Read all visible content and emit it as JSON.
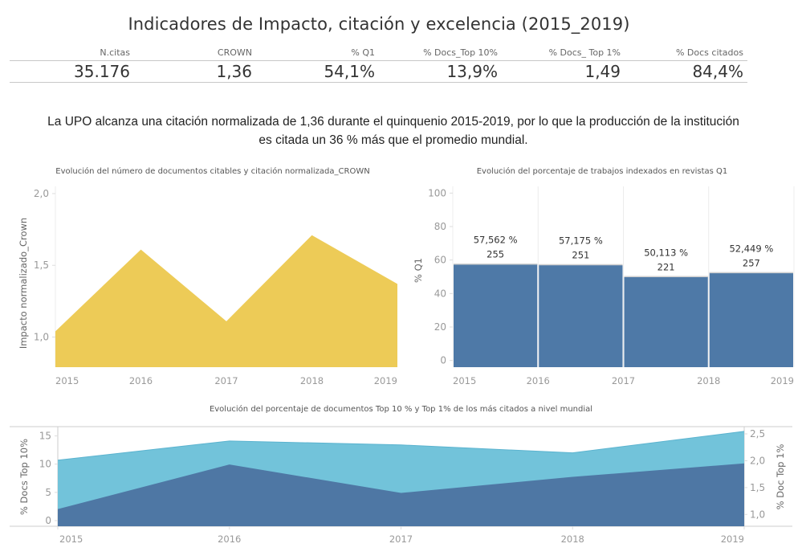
{
  "header": {
    "title": "Indicadores de Impacto, citación y excelencia (2015_2019)"
  },
  "kpis": [
    {
      "label": "N.citas",
      "value": "35.176"
    },
    {
      "label": "CROWN",
      "value": "1,36"
    },
    {
      "label": "% Q1",
      "value": "54,1%"
    },
    {
      "label": "% Docs_Top 10%",
      "value": "13,9%"
    },
    {
      "label": "% Docs_ Top 1%",
      "value": "1,49"
    },
    {
      "label": "% Docs citados",
      "value": "84,4%"
    }
  ],
  "summary": {
    "line1": "La UPO alcanza una citación normalizada de 1,36 durante el quinquenio 2015-2019,  por lo que la producción de la institución",
    "line2": "es citada un 36 % más que el promedio mundial."
  },
  "colors": {
    "crown": "#EDCB57",
    "q1": "#4E79A7",
    "top10": "#72C3DA",
    "top1": "#4E77A4",
    "axis": "#999999",
    "grid": "#e6e6e6"
  },
  "chart_data": [
    {
      "type": "area",
      "title": "Evolución del número de documentos citables y citación normalizada_CROWN",
      "xlabel": "",
      "ylabel": "Impacto normalizado_Crown",
      "categories": [
        "2015",
        "2016",
        "2017",
        "2018",
        "2019"
      ],
      "values": [
        1.04,
        1.61,
        1.11,
        1.71,
        1.37
      ],
      "ylim": [
        0.79,
        2.05
      ],
      "yticks": [
        1.0,
        1.5,
        2.0
      ],
      "ytick_labels": [
        "1,0",
        "1,5",
        "2,0"
      ],
      "grid": false
    },
    {
      "type": "bar",
      "title": "Evolución del porcentaje de trabajos indexados en revistas Q1",
      "xlabel": "",
      "ylabel": "% Q1",
      "categories": [
        "2015",
        "2016",
        "2017",
        "2018",
        "2019"
      ],
      "values": [
        57.562,
        57.175,
        50.113,
        52.449
      ],
      "bar_years": [
        "2015",
        "2016",
        "2017",
        "2018"
      ],
      "labels_pct": [
        "57,562 %",
        "57,175 %",
        "50,113 %",
        "52,449 %"
      ],
      "labels_count": [
        "255",
        "251",
        "221",
        "257"
      ],
      "ylim": [
        -4,
        104
      ],
      "yticks": [
        0,
        20,
        40,
        60,
        80,
        100
      ],
      "ytick_labels": [
        "0",
        "20",
        "40",
        "60",
        "80",
        "100"
      ],
      "grid": true
    },
    {
      "type": "area",
      "title": "Evolución del porcentaje de documentos Top 10 % y Top 1% de los más citados a nivel mundial",
      "xlabel": "",
      "categories": [
        "2015",
        "2016",
        "2017",
        "2018",
        "2019"
      ],
      "series": [
        {
          "name": "% Docs Top 10%",
          "axis": "left",
          "values": [
            10.7,
            14.1,
            13.4,
            12.0,
            15.8
          ]
        },
        {
          "name": "% Doc Top 1%",
          "axis": "right",
          "values": [
            1.1,
            1.93,
            1.4,
            1.7,
            1.95
          ]
        }
      ],
      "y_left": {
        "label": "% Docs Top 10%",
        "ylim": [
          -1,
          16.5
        ],
        "ticks": [
          0,
          5,
          10,
          15
        ],
        "tick_labels": [
          "0",
          "5",
          "10",
          "15"
        ]
      },
      "y_right": {
        "label": "% Doc Top 1%",
        "ylim": [
          0.78,
          2.62
        ],
        "ticks": [
          1.0,
          1.5,
          2.0,
          2.5
        ],
        "tick_labels": [
          "1,0",
          "1,5",
          "2,0",
          "2,5"
        ]
      },
      "grid": false
    }
  ]
}
